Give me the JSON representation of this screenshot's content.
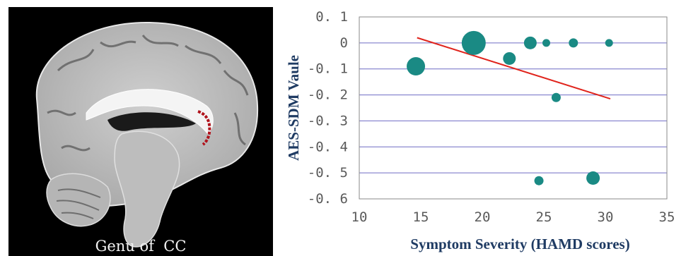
{
  "brain_image": {
    "caption": "Genu of  CC"
  },
  "chart_data": {
    "type": "scatter",
    "xlabel": "Symptom Severity (HAMD scores)",
    "ylabel": "AES-SDM Vaule",
    "xlim": [
      10,
      35
    ],
    "ylim": [
      -0.6,
      0.1
    ],
    "x_ticks": [
      "10",
      "15",
      "20",
      "25",
      "30",
      "35"
    ],
    "y_ticks": [
      "0. 1",
      "0",
      "-0. 1",
      "-0. 2",
      "-0. 3",
      "-0. 4",
      "-0. 5",
      "-0. 6"
    ],
    "y_tick_values": [
      0.1,
      0,
      -0.1,
      -0.2,
      -0.3,
      -0.4,
      -0.5,
      -0.6
    ],
    "grid": "horizontal",
    "marker_color": "#1a8a84",
    "line_color": "#e0241c",
    "points": [
      {
        "x": 14.6,
        "y": -0.09,
        "size": 13
      },
      {
        "x": 19.3,
        "y": 0.0,
        "size": 17
      },
      {
        "x": 22.2,
        "y": -0.06,
        "size": 9
      },
      {
        "x": 23.9,
        "y": 0.0,
        "size": 9
      },
      {
        "x": 25.2,
        "y": 0.0,
        "size": 5.5
      },
      {
        "x": 27.4,
        "y": 0.0,
        "size": 6.5
      },
      {
        "x": 30.3,
        "y": 0.0,
        "size": 5.5
      },
      {
        "x": 26.0,
        "y": -0.21,
        "size": 6.5
      },
      {
        "x": 24.6,
        "y": -0.53,
        "size": 6.5
      },
      {
        "x": 29.0,
        "y": -0.52,
        "size": 9.5
      }
    ],
    "trendline": {
      "x": [
        14.7,
        30.4
      ],
      "y": [
        0.02,
        -0.215
      ]
    }
  }
}
